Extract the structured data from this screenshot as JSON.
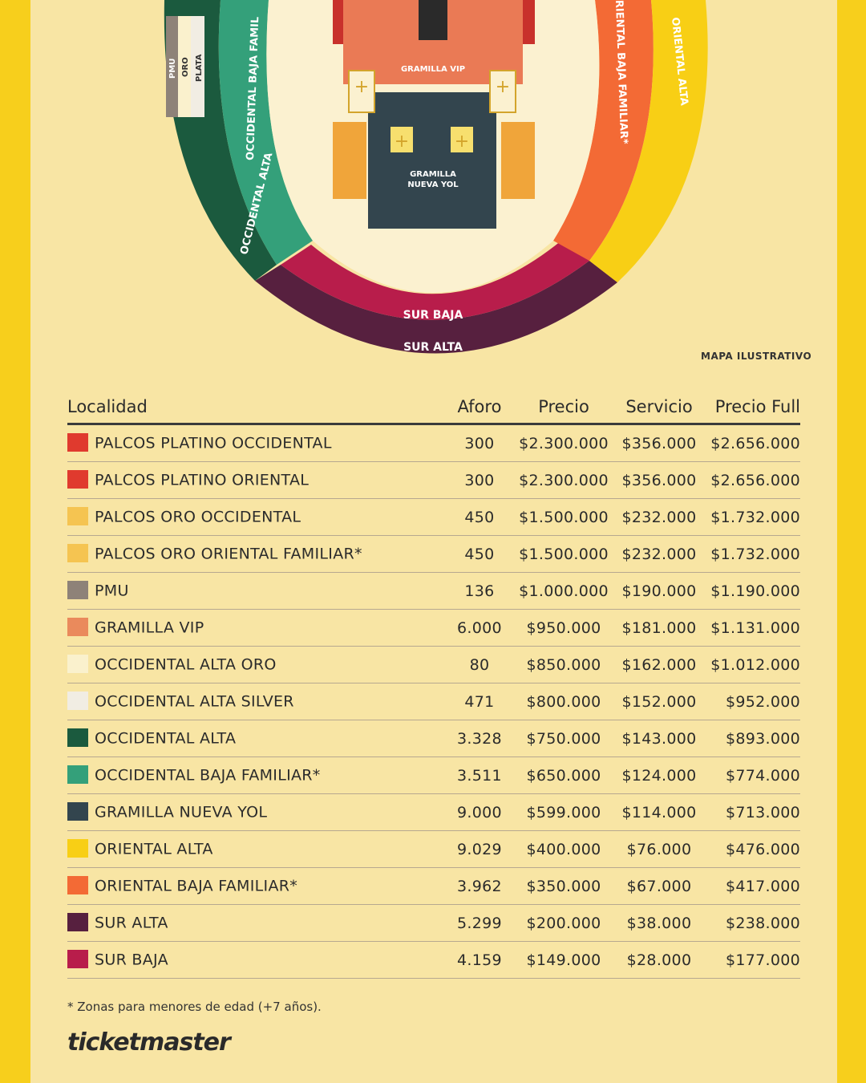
{
  "map": {
    "label": "MAPA ILUSTRATIVO",
    "sections": {
      "gramilla_vip": "GRAMILLA VIP",
      "gramilla_nueva_yol": [
        "GRAMILLA",
        "NUEVA YOL"
      ],
      "sur_baja": "SUR BAJA",
      "sur_alta": "SUR ALTA",
      "occidental_alta": "OCCIDENTAL ALTA",
      "occidental_baja": "OCCIDENTAL BAJA FAMIL",
      "oriental_baja": "RIENTAL BAJA FAMILIAR*",
      "oriental_alta": "ORIENTAL ALTA",
      "pmu": "PMU",
      "oro": "ORO",
      "plata": "PLATA"
    }
  },
  "table": {
    "headers": {
      "localidad": "Localidad",
      "aforo": "Aforo",
      "precio": "Precio",
      "servicio": "Servicio",
      "precio_full": "Precio Full"
    },
    "rows": [
      {
        "color": "#e03a2e",
        "name": "PALCOS PLATINO OCCIDENTAL",
        "aforo": "300",
        "precio": "$2.300.000",
        "servicio": "$356.000",
        "full": "$2.656.000"
      },
      {
        "color": "#e03a2e",
        "name": "PALCOS PLATINO ORIENTAL",
        "aforo": "300",
        "precio": "$2.300.000",
        "servicio": "$356.000",
        "full": "$2.656.000"
      },
      {
        "color": "#f5c451",
        "name": "PALCOS ORO OCCIDENTAL",
        "aforo": "450",
        "precio": "$1.500.000",
        "servicio": "$232.000",
        "full": "$1.732.000"
      },
      {
        "color": "#f5c451",
        "name": "PALCOS ORO ORIENTAL FAMILIAR*",
        "aforo": "450",
        "precio": "$1.500.000",
        "servicio": "$232.000",
        "full": "$1.732.000"
      },
      {
        "color": "#8e8278",
        "name": "PMU",
        "aforo": "136",
        "precio": "$1.000.000",
        "servicio": "$190.000",
        "full": "$1.190.000"
      },
      {
        "color": "#ea8a5c",
        "name": "GRAMILLA VIP",
        "aforo": "6.000",
        "precio": "$950.000",
        "servicio": "$181.000",
        "full": "$1.131.000"
      },
      {
        "color": "#faf1cd",
        "name": "OCCIDENTAL ALTA ORO",
        "aforo": "80",
        "precio": "$850.000",
        "servicio": "$162.000",
        "full": "$1.012.000"
      },
      {
        "color": "#f1ede3",
        "name": "OCCIDENTAL ALTA SILVER",
        "aforo": "471",
        "precio": "$800.000",
        "servicio": "$152.000",
        "full": "$952.000"
      },
      {
        "color": "#1b5a3e",
        "name": "OCCIDENTAL ALTA",
        "aforo": "3.328",
        "precio": "$750.000",
        "servicio": "$143.000",
        "full": "$893.000"
      },
      {
        "color": "#34a07a",
        "name": "OCCIDENTAL BAJA FAMILIAR*",
        "aforo": "3.511",
        "precio": "$650.000",
        "servicio": "$124.000",
        "full": "$774.000"
      },
      {
        "color": "#33454e",
        "name": "GRAMILLA NUEVA YOL",
        "aforo": "9.000",
        "precio": "$599.000",
        "servicio": "$114.000",
        "full": "$713.000"
      },
      {
        "color": "#f8cf15",
        "name": "ORIENTAL ALTA",
        "aforo": "9.029",
        "precio": "$400.000",
        "servicio": "$76.000",
        "full": "$476.000"
      },
      {
        "color": "#f36a35",
        "name": "ORIENTAL BAJA FAMILIAR*",
        "aforo": "3.962",
        "precio": "$350.000",
        "servicio": "$67.000",
        "full": "$417.000"
      },
      {
        "color": "#57203f",
        "name": "SUR ALTA",
        "aforo": "5.299",
        "precio": "$200.000",
        "servicio": "$38.000",
        "full": "$238.000"
      },
      {
        "color": "#b81d4b",
        "name": "SUR BAJA",
        "aforo": "4.159",
        "precio": "$149.000",
        "servicio": "$28.000",
        "full": "$177.000"
      }
    ]
  },
  "footnote": "* Zonas para menores de edad (+7 años).",
  "brand": "ticketmaster"
}
